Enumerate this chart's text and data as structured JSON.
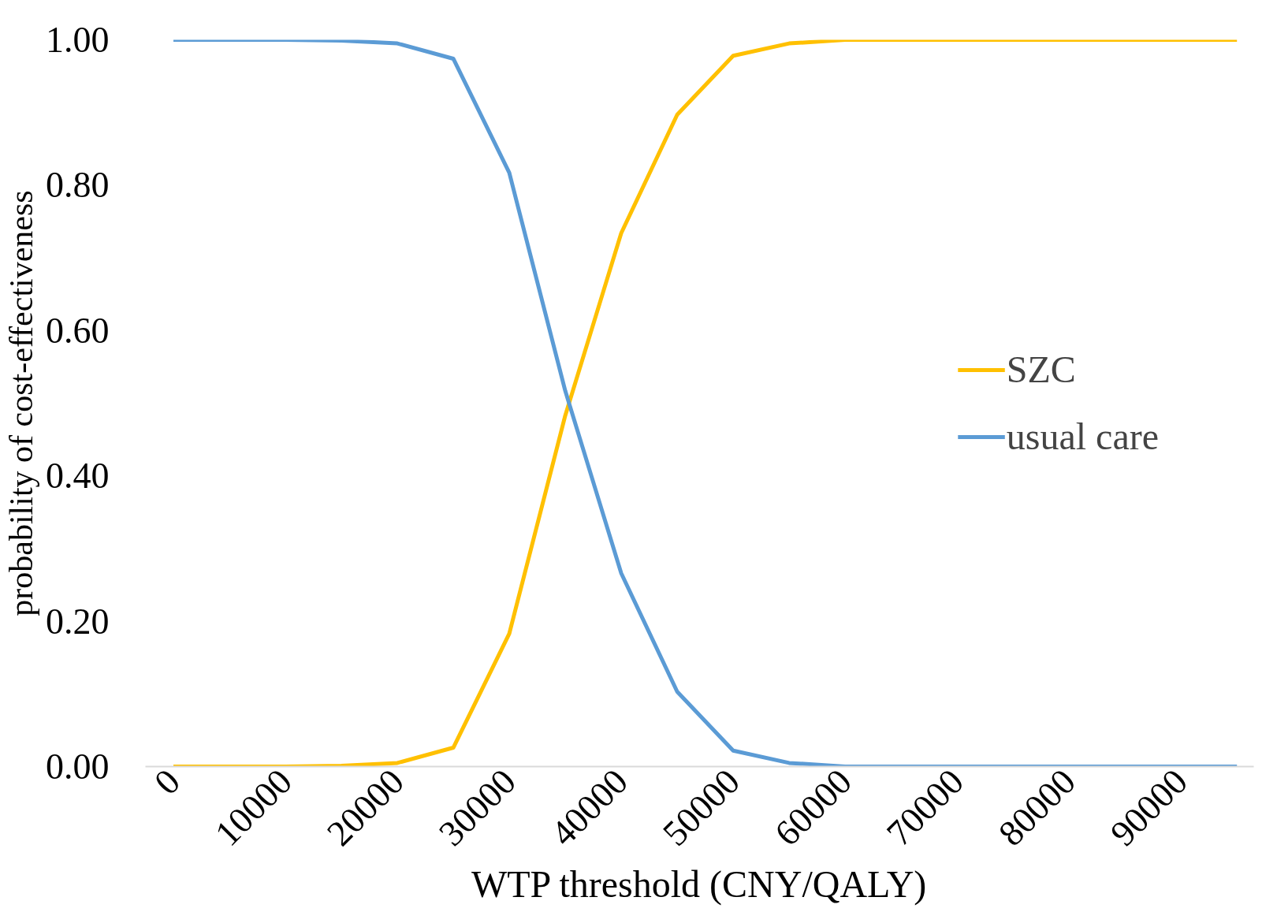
{
  "chart_data": {
    "type": "line",
    "xlabel": "WTP threshold (CNY/QALY)",
    "ylabel": "probability of cost-effectiveness",
    "x": [
      0,
      5000,
      10000,
      15000,
      20000,
      25000,
      30000,
      35000,
      40000,
      45000,
      50000,
      55000,
      60000,
      65000,
      70000,
      75000,
      80000,
      85000,
      90000,
      95000
    ],
    "series": [
      {
        "name": "SZC",
        "color": "#ffc000",
        "values": [
          0,
          0,
          0,
          0.001,
          0.005,
          0.026,
          0.183,
          0.483,
          0.734,
          0.897,
          0.978,
          0.995,
          1,
          1,
          1,
          1,
          1,
          1,
          1,
          1
        ]
      },
      {
        "name": "usual care",
        "color": "#5b9bd5",
        "values": [
          1,
          1,
          1,
          0.999,
          0.995,
          0.974,
          0.817,
          0.517,
          0.266,
          0.103,
          0.022,
          0.005,
          0,
          0,
          0,
          0,
          0,
          0,
          0,
          0
        ]
      }
    ],
    "xlim": [
      -2500,
      96500
    ],
    "xticks": [
      0,
      10000,
      20000,
      30000,
      40000,
      50000,
      60000,
      70000,
      80000,
      90000
    ],
    "ylim": [
      0,
      1
    ],
    "yticks": [
      {
        "value": 0,
        "label": "0.00"
      },
      {
        "value": 0.2,
        "label": "0.20"
      },
      {
        "value": 0.4,
        "label": "0.40"
      },
      {
        "value": 0.6,
        "label": "0.60"
      },
      {
        "value": 0.8,
        "label": "0.80"
      },
      {
        "value": 1,
        "label": "1.00"
      }
    ],
    "grid": false,
    "legend": "right",
    "marker": "none",
    "line_style": "solid"
  }
}
